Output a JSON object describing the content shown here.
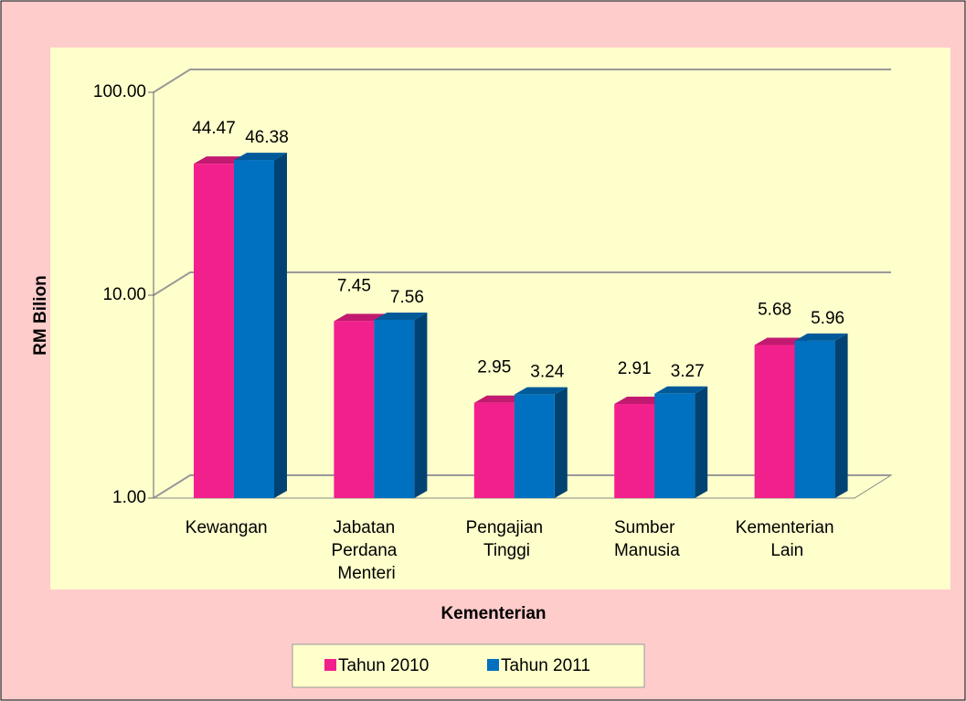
{
  "chart_data": {
    "type": "bar3d",
    "y_label": "RM Bilion",
    "x_label": "Kementerian",
    "categories": [
      "Kewangan",
      "Jabatan Perdana Menteri",
      "Pengajian Tinggi",
      "Sumber Manusia",
      "Kementerian Lain"
    ],
    "series": [
      {
        "name": "Tahun 2010",
        "color": "#f2208c",
        "values": [
          44.47,
          7.45,
          2.95,
          2.91,
          5.68
        ]
      },
      {
        "name": "Tahun 2011",
        "color": "#0070c0",
        "values": [
          46.38,
          7.56,
          3.24,
          3.27,
          5.96
        ]
      }
    ],
    "log_scale": true,
    "ylim": [
      1,
      100
    ],
    "yticks": [
      {
        "value": 1,
        "label": "1.00"
      },
      {
        "value": 10,
        "label": "10.00"
      },
      {
        "value": 100,
        "label": "100.00"
      }
    ],
    "grid": true,
    "legend": "bottom"
  }
}
